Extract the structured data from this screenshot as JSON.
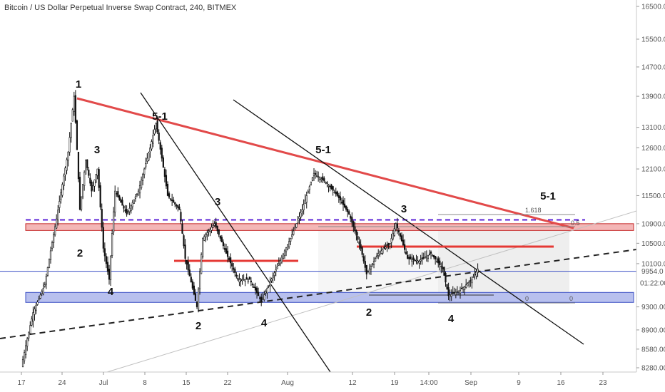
{
  "header": {
    "title": "Bitcoin / US Dollar Perpetual Inverse Swap Contract, 240, BITMEX"
  },
  "chart_data": {
    "type": "candlestick",
    "title": "Bitcoin / US Dollar Perpetual Inverse Swap Contract, 240, BITMEX",
    "x_ticks": [
      "17",
      "24",
      "Jul",
      "8",
      "15",
      "22",
      "Aug",
      "12",
      "19",
      "14:00",
      "Sep",
      "9",
      "16",
      "23"
    ],
    "y_ticks": [
      "16500.00",
      "15500.00",
      "14700.00",
      "13900.00",
      "13100.00",
      "12600.00",
      "12100.00",
      "11500.00",
      "10900.00",
      "10500.00",
      "10100.00",
      "9300.00",
      "8900.00",
      "8580.00",
      "8280.00"
    ],
    "current_price": {
      "label": "9954.0",
      "value": 9954
    },
    "countdown": {
      "label": "01:22:00"
    },
    "ylim": [
      8200,
      16800
    ],
    "y_scale": "log",
    "grid": false,
    "price_path": [
      [
        "17-Jun",
        8300
      ],
      [
        "19-Jun",
        9200
      ],
      [
        "21-Jun",
        9700
      ],
      [
        "23-Jun",
        11000
      ],
      [
        "25-Jun",
        12500
      ],
      [
        "26-Jun",
        13900
      ],
      [
        "27-Jun",
        11200
      ],
      [
        "28-Jun",
        12300
      ],
      [
        "29-Jun",
        11600
      ],
      [
        "30-Jun",
        12100
      ],
      [
        "01-Jul",
        10400
      ],
      [
        "02-Jul",
        9800
      ],
      [
        "03-Jul",
        11600
      ],
      [
        "05-Jul",
        11100
      ],
      [
        "07-Jul",
        11600
      ],
      [
        "09-Jul",
        12600
      ],
      [
        "10-Jul",
        13200
      ],
      [
        "12-Jul",
        11500
      ],
      [
        "14-Jul",
        11200
      ],
      [
        "15-Jul",
        10200
      ],
      [
        "17-Jul",
        9300
      ],
      [
        "18-Jul",
        10600
      ],
      [
        "20-Jul",
        10900
      ],
      [
        "22-Jul",
        10300
      ],
      [
        "24-Jul",
        9800
      ],
      [
        "26-Jul",
        9800
      ],
      [
        "28-Jul",
        9400
      ],
      [
        "31-Jul",
        10100
      ],
      [
        "02-Aug",
        10600
      ],
      [
        "04-Aug",
        11200
      ],
      [
        "06-Aug",
        12000
      ],
      [
        "08-Aug",
        11800
      ],
      [
        "10-Aug",
        11500
      ],
      [
        "12-Aug",
        11100
      ],
      [
        "14-Aug",
        10400
      ],
      [
        "15-Aug",
        9900
      ],
      [
        "17-Aug",
        10300
      ],
      [
        "19-Aug",
        10500
      ],
      [
        "20-Aug",
        10900
      ],
      [
        "22-Aug",
        10200
      ],
      [
        "24-Aug",
        10150
      ],
      [
        "26-Aug",
        10300
      ],
      [
        "28-Aug",
        10000
      ],
      [
        "29-Aug",
        9500
      ],
      [
        "31-Aug",
        9600
      ],
      [
        "01-Sep",
        9700
      ],
      [
        "02-Sep",
        9800
      ],
      [
        "03-Sep",
        10000
      ]
    ],
    "horizontal_lines": [
      {
        "name": "resistance-dashed",
        "value": 10980,
        "color": "#5b21d6",
        "style": "dashed"
      },
      {
        "name": "price-line",
        "value": 9954,
        "color": "#3b4fc4",
        "style": "solid"
      }
    ],
    "zones": [
      {
        "name": "red-zone",
        "from": 10760,
        "to": 10900,
        "color": "#f3b6b6",
        "border": "#c62828"
      },
      {
        "name": "blue-zone",
        "from": 9380,
        "to": 9560,
        "color": "#b8c0ee",
        "border": "#3b4fc4"
      }
    ],
    "annotations": {
      "wave_labels": [
        "1",
        "2",
        "3",
        "4",
        "5-1",
        "2",
        "3",
        "4",
        "5-1",
        "2",
        "3",
        "4",
        "5-1"
      ],
      "fib_labels": [
        "1.618",
        "0.5",
        "0",
        "0"
      ]
    },
    "colors": {
      "candles": "#111111",
      "trendline": "#e24a4a",
      "price_line": "#3b4fc4",
      "dashed_resistance": "#5b21d6"
    }
  }
}
